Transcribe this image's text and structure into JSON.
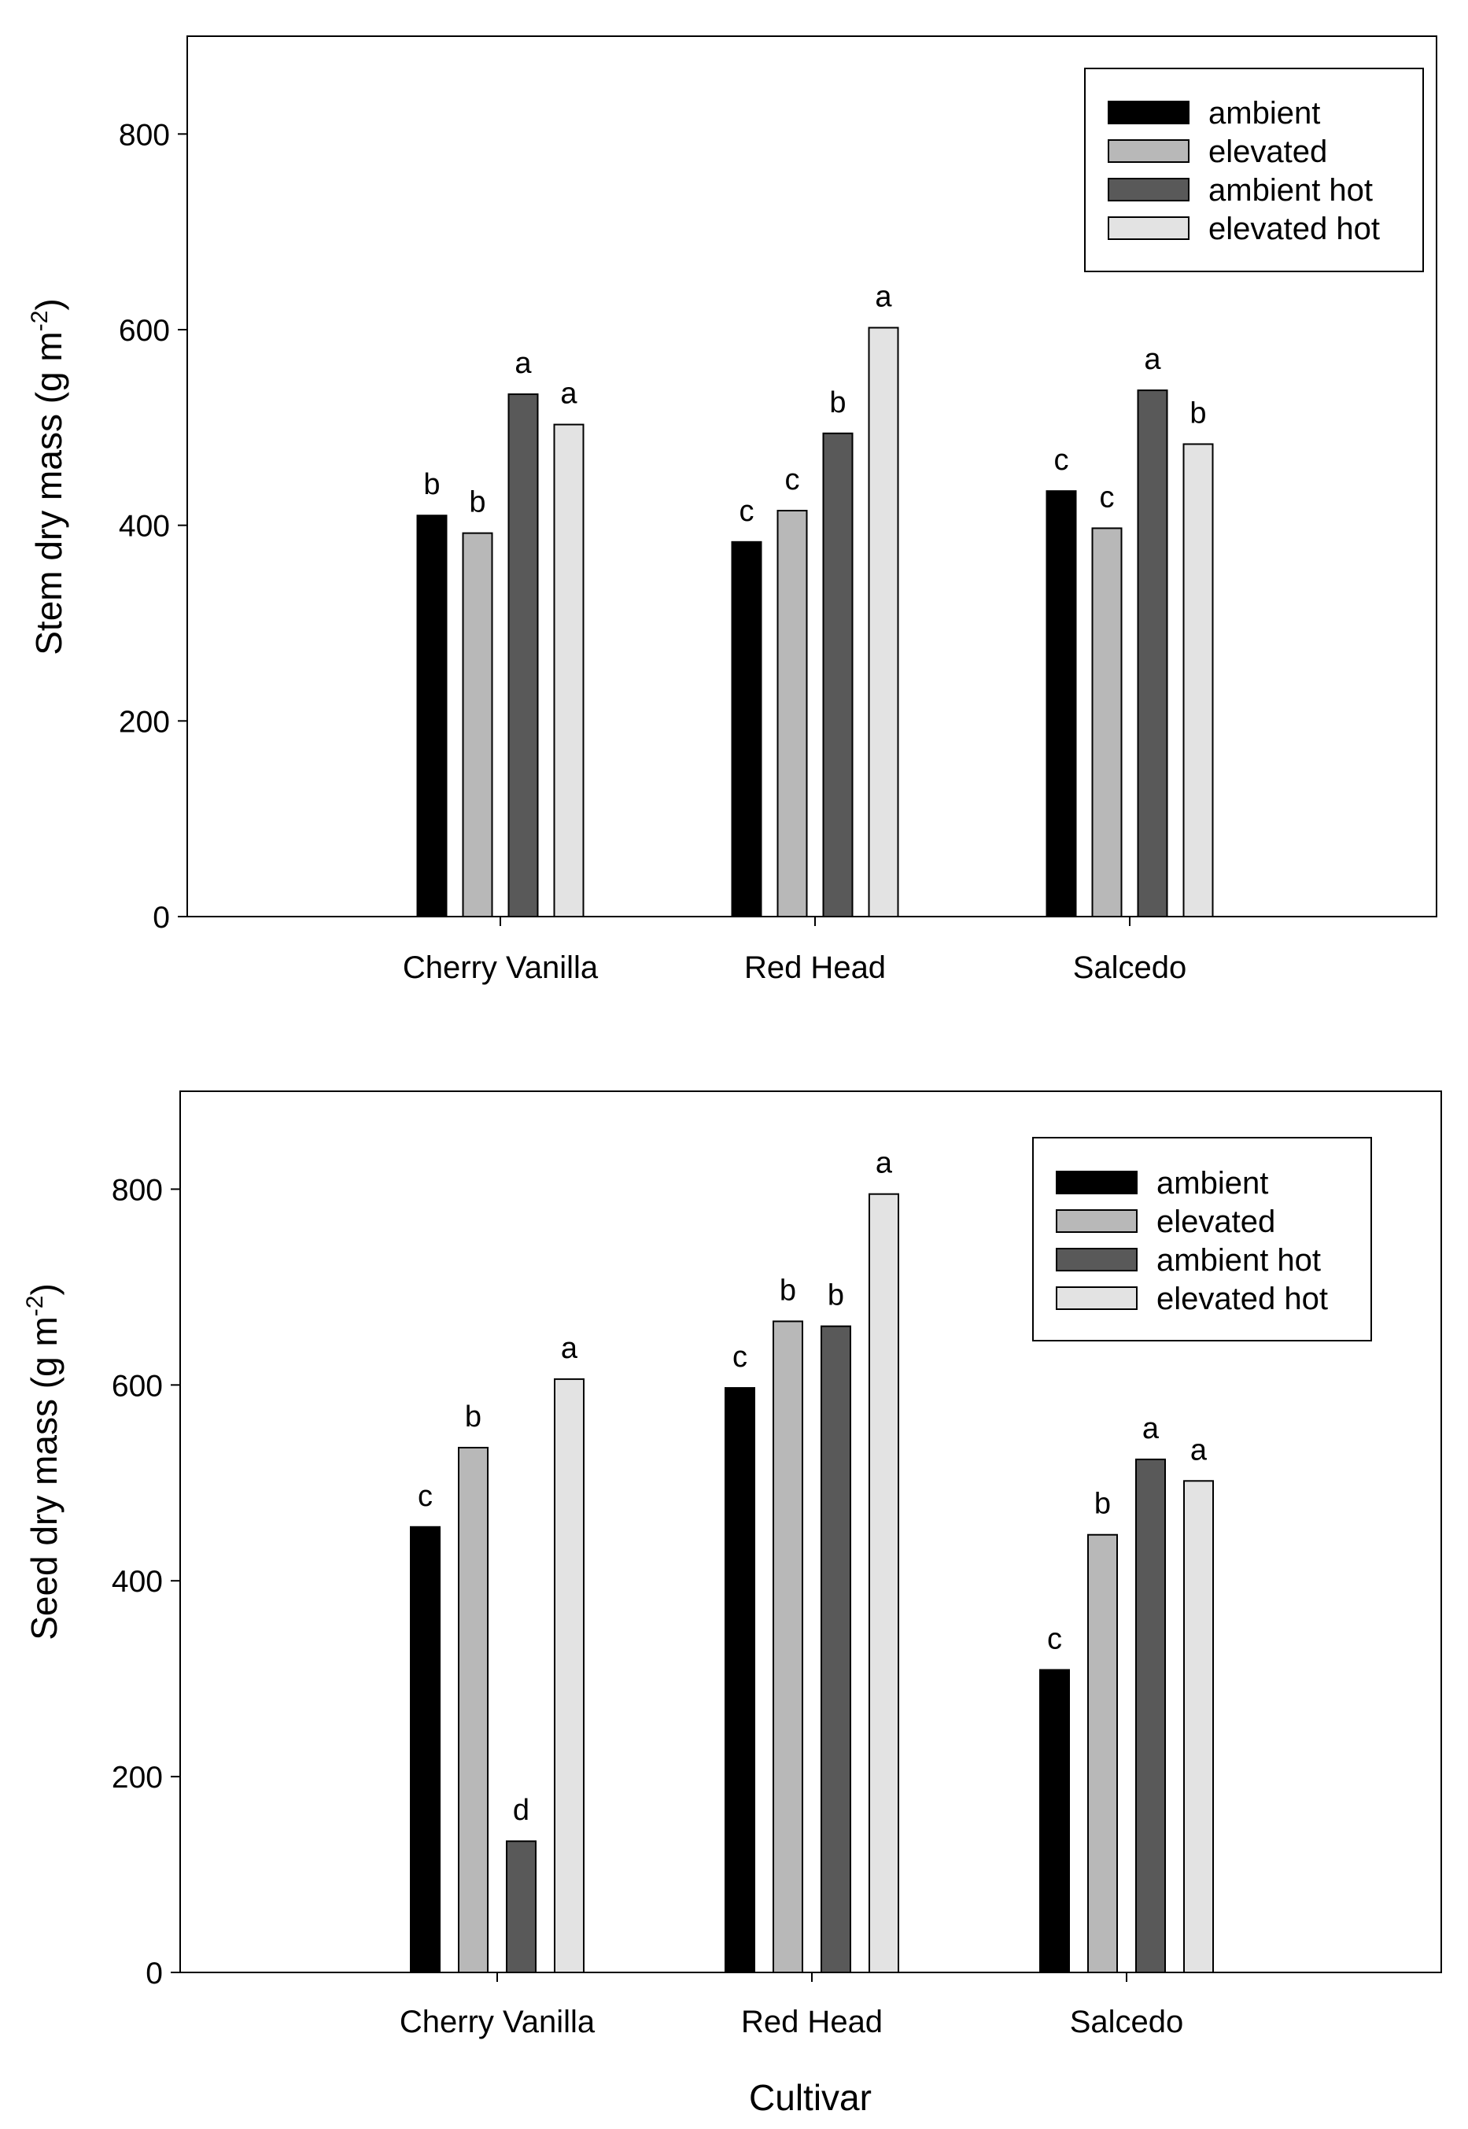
{
  "chart_data": [
    {
      "type": "bar",
      "id": "stem",
      "title": "",
      "xlabel": "",
      "ylabel": "Stem dry mass (g m",
      "ylabel_sup": "-2",
      "ylabel_close": ")",
      "ylim": [
        0,
        900
      ],
      "yticks": [
        "0",
        "200",
        "400",
        "600",
        "800"
      ],
      "ytick_values": [
        0,
        200,
        400,
        600,
        800
      ],
      "categories": [
        "Cherry Vanilla",
        "Red Head",
        "Salcedo"
      ],
      "series": [
        {
          "name": "ambient",
          "color": "#000000",
          "values": [
            410,
            383,
            435
          ],
          "letters": [
            "b",
            "c",
            "c"
          ]
        },
        {
          "name": "elevated",
          "color": "#b8b8b8",
          "values": [
            392,
            415,
            397
          ],
          "letters": [
            "b",
            "c",
            "c"
          ]
        },
        {
          "name": "ambient hot",
          "color": "#595959",
          "values": [
            534,
            494,
            538
          ],
          "letters": [
            "a",
            "b",
            "a"
          ]
        },
        {
          "name": "elevated hot",
          "color": "#e3e3e3",
          "values": [
            503,
            602,
            483
          ],
          "letters": [
            "a",
            "a",
            "b"
          ]
        }
      ],
      "legend": [
        "ambient",
        "elevated",
        "ambient hot",
        "elevated hot"
      ],
      "legend_position": "top-right"
    },
    {
      "type": "bar",
      "id": "seed",
      "title": "",
      "xlabel": "Cultivar",
      "ylabel": "Seed dry mass (g m",
      "ylabel_sup": "-2",
      "ylabel_close": ")",
      "ylim": [
        0,
        900
      ],
      "yticks": [
        "0",
        "200",
        "400",
        "600",
        "800"
      ],
      "ytick_values": [
        0,
        200,
        400,
        600,
        800
      ],
      "categories": [
        "Cherry Vanilla",
        "Red Head",
        "Salcedo"
      ],
      "series": [
        {
          "name": "ambient",
          "color": "#000000",
          "values": [
            455,
            597,
            309
          ],
          "letters": [
            "c",
            "c",
            "c"
          ]
        },
        {
          "name": "elevated",
          "color": "#b8b8b8",
          "values": [
            536,
            665,
            447
          ],
          "letters": [
            "b",
            "b",
            "b"
          ]
        },
        {
          "name": "ambient hot",
          "color": "#595959",
          "values": [
            134,
            660,
            524
          ],
          "letters": [
            "d",
            "b",
            "a"
          ]
        },
        {
          "name": "elevated hot",
          "color": "#e3e3e3",
          "values": [
            606,
            795,
            502
          ],
          "letters": [
            "a",
            "a",
            "a"
          ]
        }
      ],
      "legend": [
        "ambient",
        "elevated",
        "ambient hot",
        "elevated hot"
      ],
      "legend_position": "top-right"
    }
  ]
}
